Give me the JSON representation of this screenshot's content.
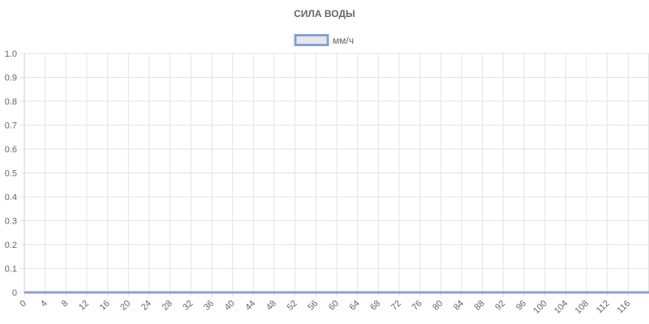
{
  "chart_data": {
    "type": "line",
    "title": "СИЛА ВОДЫ",
    "xlabel": "",
    "ylabel": "",
    "x": [
      0,
      1,
      2,
      3,
      4,
      5,
      6,
      7,
      8,
      9,
      10,
      11,
      12,
      13,
      14,
      15,
      16,
      17,
      18,
      19,
      20,
      21,
      22,
      23,
      24,
      25,
      26,
      27,
      28,
      29,
      30,
      31,
      32,
      33,
      34,
      35,
      36,
      37,
      38,
      39,
      40,
      41,
      42,
      43,
      44,
      45,
      46,
      47,
      48,
      49,
      50,
      51,
      52,
      53,
      54,
      55,
      56,
      57,
      58,
      59,
      60,
      61,
      62,
      63,
      64,
      65,
      66,
      67,
      68,
      69,
      70,
      71,
      72,
      73,
      74,
      75,
      76,
      77,
      78,
      79,
      80,
      81,
      82,
      83,
      84,
      85,
      86,
      87,
      88,
      89,
      90,
      91,
      92,
      93,
      94,
      95,
      96,
      97,
      98,
      99,
      100,
      101,
      102,
      103,
      104,
      105,
      106,
      107,
      108,
      109,
      110,
      111,
      112,
      113,
      114,
      115,
      116,
      117,
      118,
      119
    ],
    "x_tick_labels": [
      "0",
      "4",
      "8",
      "12",
      "16",
      "20",
      "24",
      "28",
      "32",
      "36",
      "40",
      "44",
      "48",
      "52",
      "56",
      "60",
      "64",
      "68",
      "72",
      "76",
      "80",
      "84",
      "88",
      "92",
      "96",
      "100",
      "104",
      "108",
      "112",
      "116"
    ],
    "y_tick_labels": [
      "1.0",
      "0.9",
      "0.8",
      "0.7",
      "0.6",
      "0.5",
      "0.4",
      "0.3",
      "0.2",
      "0.1",
      "0"
    ],
    "ylim": [
      0,
      1
    ],
    "grid": true,
    "legend_position": "top",
    "series": [
      {
        "name": "мм/ч",
        "values": [
          0,
          0,
          0,
          0,
          0,
          0,
          0,
          0,
          0,
          0,
          0,
          0,
          0,
          0,
          0,
          0,
          0,
          0,
          0,
          0,
          0,
          0,
          0,
          0,
          0,
          0,
          0,
          0,
          0,
          0,
          0,
          0,
          0,
          0,
          0,
          0,
          0,
          0,
          0,
          0,
          0,
          0,
          0,
          0,
          0,
          0,
          0,
          0,
          0,
          0,
          0,
          0,
          0,
          0,
          0,
          0,
          0,
          0,
          0,
          0,
          0,
          0,
          0,
          0,
          0,
          0,
          0,
          0,
          0,
          0,
          0,
          0,
          0,
          0,
          0,
          0,
          0,
          0,
          0,
          0,
          0,
          0,
          0,
          0,
          0,
          0,
          0,
          0,
          0,
          0,
          0,
          0,
          0,
          0,
          0,
          0,
          0,
          0,
          0,
          0,
          0,
          0,
          0,
          0,
          0,
          0,
          0,
          0,
          0,
          0,
          0,
          0,
          0,
          0,
          0,
          0,
          0,
          0,
          0,
          0
        ],
        "color": "#8aa0d0",
        "fill_color": "#e8e8ec"
      }
    ]
  }
}
